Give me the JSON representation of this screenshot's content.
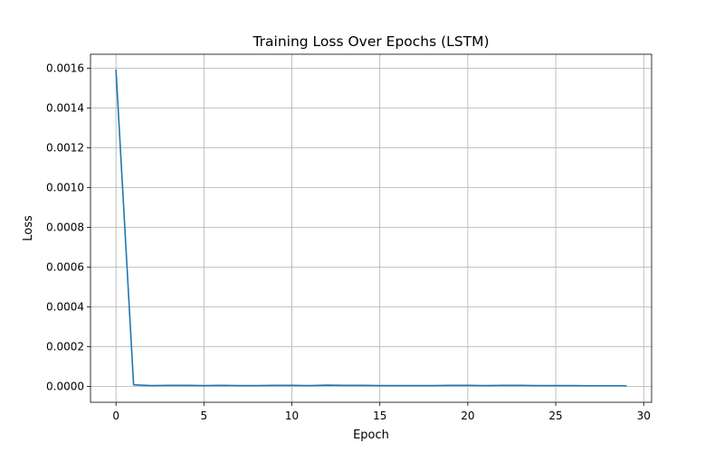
{
  "chart_data": {
    "type": "line",
    "title": "Training Loss Over Epochs (LSTM)",
    "xlabel": "Epoch",
    "ylabel": "Loss",
    "xlim": [
      -1.45,
      30.45
    ],
    "ylim": [
      -8e-05,
      0.00167
    ],
    "xticks": [
      0,
      5,
      10,
      15,
      20,
      25,
      30
    ],
    "xtick_labels": [
      "0",
      "5",
      "10",
      "15",
      "20",
      "25",
      "30"
    ],
    "yticks": [
      0.0,
      0.0002,
      0.0004,
      0.0006,
      0.0008,
      0.001,
      0.0012,
      0.0014,
      0.0016
    ],
    "ytick_labels": [
      "0.0000",
      "0.0002",
      "0.0004",
      "0.0006",
      "0.0008",
      "0.0010",
      "0.0012",
      "0.0014",
      "0.0016"
    ],
    "grid": true,
    "series": [
      {
        "color": "#1f77b4",
        "x": [
          0,
          1,
          2,
          3,
          4,
          5,
          6,
          7,
          8,
          9,
          10,
          11,
          12,
          13,
          14,
          15,
          16,
          17,
          18,
          19,
          20,
          21,
          22,
          23,
          24,
          25,
          26,
          27,
          28,
          29
        ],
        "values": [
          0.00159,
          8e-06,
          4e-06,
          5e-06,
          5e-06,
          4e-06,
          5e-06,
          4e-06,
          4e-06,
          5e-06,
          5e-06,
          4e-06,
          6e-06,
          5e-06,
          5e-06,
          4e-06,
          4e-06,
          4e-06,
          4e-06,
          5e-06,
          5e-06,
          4e-06,
          5e-06,
          5e-06,
          4e-06,
          4e-06,
          4e-06,
          3e-06,
          3e-06,
          3e-06
        ]
      }
    ]
  }
}
